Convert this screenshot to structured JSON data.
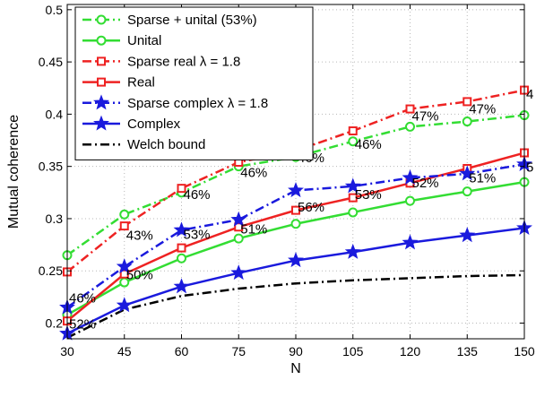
{
  "chart_data": {
    "type": "line",
    "title": "",
    "xlabel": "N",
    "ylabel": "Mutual coherence",
    "x": [
      30,
      45,
      60,
      75,
      90,
      105,
      120,
      135,
      150
    ],
    "xlim": [
      30,
      150
    ],
    "ylim": [
      0.185,
      0.505
    ],
    "xticks": [
      "30",
      "45",
      "60",
      "75",
      "90",
      "105",
      "120",
      "135",
      "150"
    ],
    "yticks": [
      "0.2",
      "0.25",
      "0.3",
      "0.35",
      "0.4",
      "0.45",
      "0.5"
    ],
    "ytick_values": [
      0.2,
      0.25,
      0.3,
      0.35,
      0.4,
      0.45,
      0.5
    ],
    "grid": true,
    "legend_position": "top-left",
    "series": [
      {
        "name": "Sparse + unital (53%)",
        "color": "#33dd33",
        "style": "dash-dot",
        "marker": "circle",
        "marker_filled": false,
        "values": [
          0.265,
          0.304,
          0.325,
          0.35,
          0.359,
          0.374,
          0.388,
          0.393,
          0.399
        ]
      },
      {
        "name": "Unital",
        "color": "#33dd33",
        "style": "solid",
        "marker": "circle",
        "marker_filled": false,
        "values": [
          0.208,
          0.239,
          0.262,
          0.281,
          0.295,
          0.306,
          0.317,
          0.326,
          0.335
        ]
      },
      {
        "name": "Sparse real λ = 1.8",
        "color": "#ee2222",
        "style": "dash-dot",
        "marker": "square",
        "marker_filled": false,
        "values": [
          0.249,
          0.293,
          0.329,
          0.354,
          0.365,
          0.384,
          0.405,
          0.412,
          0.423
        ]
      },
      {
        "name": "Real",
        "color": "#ee2222",
        "style": "solid",
        "marker": "square",
        "marker_filled": false,
        "values": [
          0.202,
          0.247,
          0.272,
          0.292,
          0.308,
          0.32,
          0.334,
          0.348,
          0.363
        ]
      },
      {
        "name": "Sparse complex λ = 1.8",
        "color": "#1a1add",
        "style": "dash-dot",
        "marker": "star",
        "marker_filled": true,
        "values": [
          0.215,
          0.254,
          0.289,
          0.299,
          0.327,
          0.331,
          0.339,
          0.343,
          0.352
        ]
      },
      {
        "name": "Complex",
        "color": "#1a1add",
        "style": "solid",
        "marker": "star",
        "marker_filled": true,
        "values": [
          0.19,
          0.217,
          0.235,
          0.248,
          0.26,
          0.268,
          0.277,
          0.284,
          0.291
        ]
      },
      {
        "name": "Welch bound",
        "color": "#000000",
        "style": "dash-dot",
        "marker": "none",
        "marker_filled": false,
        "values": [
          0.186,
          0.213,
          0.226,
          0.233,
          0.238,
          0.241,
          0.243,
          0.245,
          0.246
        ]
      }
    ],
    "annotations": [
      {
        "text": "52%",
        "x": 30,
        "y": 0.2
      },
      {
        "text": "46%",
        "x": 30,
        "y": 0.225
      },
      {
        "text": "50%",
        "x": 45,
        "y": 0.247
      },
      {
        "text": "43%",
        "x": 45,
        "y": 0.285
      },
      {
        "text": "53%",
        "x": 60,
        "y": 0.286
      },
      {
        "text": "46%",
        "x": 60,
        "y": 0.324
      },
      {
        "text": "51%",
        "x": 75,
        "y": 0.291
      },
      {
        "text": "46%",
        "x": 75,
        "y": 0.345
      },
      {
        "text": "56%",
        "x": 90,
        "y": 0.312
      },
      {
        "text": "46%",
        "x": 90,
        "y": 0.359
      },
      {
        "text": "53%",
        "x": 105,
        "y": 0.324
      },
      {
        "text": "46%",
        "x": 105,
        "y": 0.372
      },
      {
        "text": "52%",
        "x": 120,
        "y": 0.335
      },
      {
        "text": "47%",
        "x": 120,
        "y": 0.399
      },
      {
        "text": "51%",
        "x": 135,
        "y": 0.34
      },
      {
        "text": "47%",
        "x": 135,
        "y": 0.406
      },
      {
        "text": "5",
        "x": 150,
        "y": 0.35
      },
      {
        "text": "4",
        "x": 150,
        "y": 0.42
      }
    ]
  }
}
